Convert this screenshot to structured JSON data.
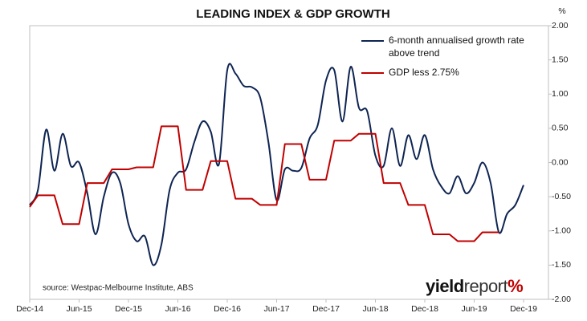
{
  "chart_data": {
    "type": "line",
    "title": "LEADING INDEX & GDP GROWTH",
    "y_unit": "%",
    "annotations": [
      "source: Westpac-Melbourne Institute, ABS"
    ],
    "logo": [
      "yield",
      "report",
      "%"
    ],
    "categories": [
      "Dec-14",
      null,
      null,
      null,
      null,
      null,
      "Jun-15",
      null,
      null,
      null,
      null,
      null,
      "Dec-15",
      null,
      null,
      null,
      null,
      null,
      "Jun-16",
      null,
      null,
      null,
      null,
      null,
      "Dec-16",
      null,
      null,
      null,
      null,
      null,
      "Jun-17",
      null,
      null,
      null,
      null,
      null,
      "Dec-17",
      null,
      null,
      null,
      null,
      null,
      "Jun-18",
      null,
      null,
      null,
      null,
      null,
      "Dec-18",
      null,
      null,
      null,
      null,
      null,
      "Jun-19",
      null,
      null,
      null,
      null,
      null,
      "Dec-19",
      null,
      null,
      null
    ],
    "series": [
      {
        "name": "6-month annualised growth rate above trend",
        "color": "#0e2452",
        "smooth": true,
        "axis": "y2",
        "values": [
          -0.62,
          -0.4,
          0.48,
          -0.12,
          0.42,
          -0.05,
          0.0,
          -0.45,
          -1.05,
          -0.5,
          -0.15,
          -0.3,
          -0.9,
          -1.15,
          -1.08,
          -1.5,
          -1.2,
          -0.4,
          -0.15,
          -0.1,
          0.3,
          0.6,
          0.45,
          -0.02,
          1.35,
          1.3,
          1.12,
          1.1,
          0.95,
          0.3,
          -0.55,
          -0.1,
          -0.12,
          -0.08,
          0.35,
          0.55,
          1.2,
          1.35,
          0.6,
          1.4,
          0.8,
          0.75,
          0.1,
          -0.05,
          0.5,
          -0.05,
          0.4,
          0.05,
          0.4,
          -0.1,
          -0.35,
          -0.45,
          -0.2,
          -0.45,
          -0.3,
          0.0,
          -0.3,
          -1.02,
          -0.75,
          -0.62,
          -0.33,
          null,
          null,
          null
        ]
      },
      {
        "name": "GDP less 2.75%",
        "color": "#c00000",
        "smooth": false,
        "axis": "y2",
        "values": [
          -0.65,
          -0.48,
          -0.48,
          -0.48,
          -0.9,
          -0.9,
          -0.9,
          -0.3,
          -0.3,
          -0.3,
          -0.1,
          -0.1,
          -0.1,
          -0.07,
          -0.07,
          -0.07,
          0.53,
          0.53,
          0.53,
          -0.4,
          -0.4,
          -0.4,
          0.02,
          0.02,
          0.02,
          -0.53,
          -0.53,
          -0.53,
          -0.62,
          -0.62,
          -0.62,
          0.27,
          0.27,
          0.27,
          -0.25,
          -0.25,
          -0.25,
          0.32,
          0.32,
          0.32,
          0.42,
          0.42,
          0.42,
          -0.3,
          -0.3,
          -0.3,
          -0.62,
          -0.62,
          -0.62,
          -1.05,
          -1.05,
          -1.05,
          -1.15,
          -1.15,
          -1.15,
          -1.02,
          -1.02,
          -1.02,
          null,
          null,
          null,
          null,
          null,
          null
        ]
      }
    ],
    "y2lim": [
      -2,
      2
    ],
    "y2ticks": [
      {
        "value": 2,
        "label": "2.00"
      },
      {
        "value": 1.5,
        "label": "1.50"
      },
      {
        "value": 1,
        "label": "1.00"
      },
      {
        "value": 0.5,
        "label": "0.50"
      },
      {
        "value": 0,
        "label": "0.00"
      },
      {
        "value": -0.5,
        "label": "-0.50"
      },
      {
        "value": -1,
        "label": "-1.00"
      },
      {
        "value": -1.5,
        "label": "-1.50"
      },
      {
        "value": -2,
        "label": "-2.00"
      }
    ],
    "grid": false
  }
}
